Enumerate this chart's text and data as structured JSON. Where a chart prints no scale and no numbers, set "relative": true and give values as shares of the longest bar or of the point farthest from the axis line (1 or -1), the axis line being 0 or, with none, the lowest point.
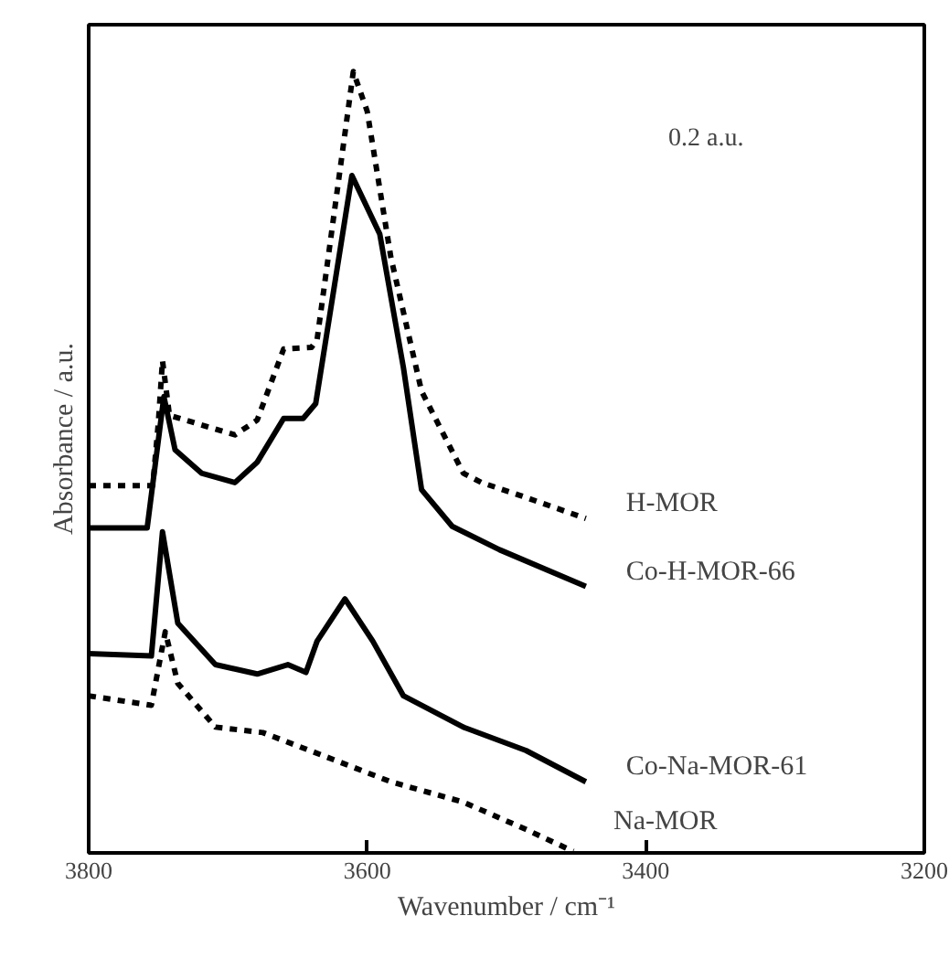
{
  "chart_data": {
    "type": "line",
    "relative": true,
    "xlabel": "Wavenumber / cm⁻¹",
    "ylabel": "Absorbance / a.u.",
    "xlim": [
      3800,
      3200
    ],
    "xticks": [
      3800,
      3600,
      3400,
      3200
    ],
    "grid": false,
    "legend": false,
    "marker": "none",
    "annotations": [
      "0.2 a.u."
    ],
    "series": [
      {
        "name": "H-MOR",
        "color": "#000000",
        "line_style": "dashed",
        "x": [
          3800,
          3754,
          3750,
          3747,
          3742,
          3695,
          3679,
          3660,
          3640,
          3636,
          3610,
          3600,
          3583,
          3561,
          3531,
          3518,
          3491,
          3443
        ],
        "values": [
          0.47,
          0.47,
          0.55,
          0.63,
          0.56,
          0.535,
          0.554,
          0.645,
          0.647,
          0.657,
          1.0,
          0.949,
          0.762,
          0.591,
          0.486,
          0.474,
          0.458,
          0.428
        ]
      },
      {
        "name": "Co-H-MOR-66",
        "color": "#000000",
        "line_style": "solid",
        "x": [
          3800,
          3758,
          3746,
          3738,
          3719,
          3695,
          3679,
          3660,
          3646,
          3637,
          3611,
          3591,
          3574,
          3561,
          3539,
          3505,
          3443
        ],
        "values": [
          0.416,
          0.416,
          0.584,
          0.516,
          0.486,
          0.474,
          0.5,
          0.556,
          0.556,
          0.575,
          0.867,
          0.792,
          0.621,
          0.465,
          0.418,
          0.388,
          0.341
        ]
      },
      {
        "name": "Co-Na-MOR-61",
        "color": "#000000",
        "line_style": "solid",
        "x": [
          3800,
          3755,
          3747,
          3736,
          3709,
          3679,
          3657,
          3644,
          3636,
          3616,
          3596,
          3574,
          3531,
          3486,
          3443
        ],
        "values": [
          0.255,
          0.252,
          0.411,
          0.294,
          0.241,
          0.229,
          0.241,
          0.231,
          0.271,
          0.325,
          0.271,
          0.201,
          0.161,
          0.131,
          0.091
        ]
      },
      {
        "name": "Na-MOR",
        "color": "#000000",
        "line_style": "dashed",
        "x": [
          3800,
          3755,
          3745,
          3736,
          3709,
          3675,
          3631,
          3583,
          3531,
          3486,
          3452
        ],
        "values": [
          0.201,
          0.189,
          0.283,
          0.217,
          0.161,
          0.154,
          0.124,
          0.091,
          0.065,
          0.03,
          0.002
        ]
      }
    ]
  }
}
